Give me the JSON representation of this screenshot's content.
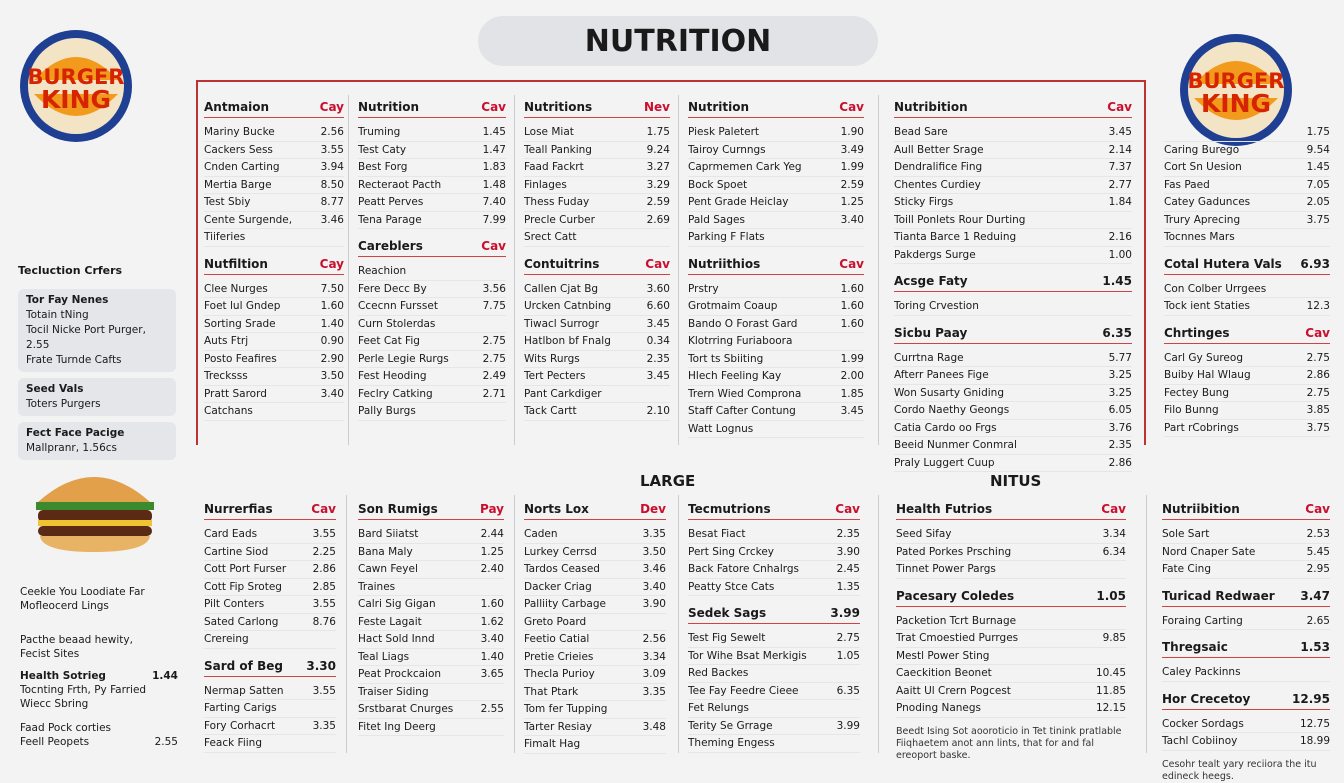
{
  "header": {
    "title": "NUTRITION",
    "logo": [
      "BURGER",
      "KING"
    ]
  },
  "top": [
    {
      "sections": [
        {
          "heading": "Antmaion",
          "unit": "Cay",
          "items": [
            [
              "Mariny Bucke",
              "2.56"
            ],
            [
              "Cackers Sess",
              "3.55"
            ],
            [
              "Cnden Carting",
              "3.94"
            ],
            [
              "Mertia Barge",
              "8.50"
            ],
            [
              "Test Sbiy",
              "8.77"
            ],
            [
              "Cente Surgende,",
              "3.46"
            ],
            [
              "Tiiferies"
            ]
          ]
        },
        {
          "heading": "Nutfiltion",
          "unit": "Cay",
          "items": [
            [
              "Clee Nurges",
              "7.50"
            ],
            [
              "Foet lul Gndep",
              "1.60"
            ],
            [
              "Sorting Srade",
              "1.40"
            ],
            [
              "Auts Ftrj",
              "0.90"
            ],
            [
              "Posto Feafires",
              "2.90"
            ],
            [
              "Trecksss",
              "3.50"
            ],
            [
              "Pratt Sarord",
              "3.40"
            ],
            [
              "Catchans"
            ]
          ]
        }
      ]
    },
    {
      "sections": [
        {
          "heading": "Nutrition",
          "unit": "Cav",
          "items": [
            [
              "Truming",
              "1.45"
            ],
            [
              "Test Caty",
              "1.47"
            ],
            [
              "Best Forg",
              "1.83"
            ],
            [
              "Recteraot Pacth",
              "1.48"
            ],
            [
              "Peatt Perves",
              "7.40"
            ],
            [
              "Tena Parage",
              "7.99"
            ]
          ]
        },
        {
          "heading": "Careblers",
          "unit": "Cav",
          "items": [
            [
              "Reachion"
            ],
            [
              "Fere Decc By",
              "3.56"
            ],
            [
              "Ccecnn Fursset",
              "7.75"
            ],
            [
              "Curn Stolerdas"
            ],
            [
              "Feet Cat Fig",
              "2.75"
            ],
            [
              "Perle Legie Rurgs",
              "2.75"
            ],
            [
              "Fest Heoding",
              "2.49"
            ],
            [
              "Feclry Catking",
              "2.71"
            ],
            [
              "Pally Burgs"
            ]
          ]
        }
      ]
    },
    {
      "sections": [
        {
          "heading": "Nutritions",
          "unit": "Nev",
          "items": [
            [
              "Lose Miat",
              "1.75"
            ],
            [
              "Teall Panking",
              "9.24"
            ],
            [
              "Faad Fackrt",
              "3.27"
            ],
            [
              "Finlages",
              "3.29"
            ],
            [
              "Thess Fuday",
              "2.59"
            ],
            [
              "Precle Curber",
              "2.69"
            ],
            [
              "Srect Catt"
            ]
          ]
        },
        {
          "heading": "Contuitrins",
          "unit": "Cav",
          "items": [
            [
              "Callen Cjat Bg",
              "3.60"
            ],
            [
              "Urcken Catnbing",
              "6.60"
            ],
            [
              "Tiwacl Surrogr",
              "3.45"
            ],
            [
              "Hatlbon bf Fnalg",
              "0.34"
            ],
            [
              "Wits Rurgs",
              "2.35"
            ],
            [
              "Tert Pecters",
              "3.45"
            ],
            [
              "Pant Carkdiger"
            ],
            [
              "Tack Cartt",
              "2.10"
            ]
          ]
        }
      ]
    },
    {
      "sections": [
        {
          "heading": "Nutrition",
          "unit": "Cav",
          "items": [
            [
              "Piesk Paletert",
              "1.90"
            ],
            [
              "Tairoy Curnngs",
              "3.49"
            ],
            [
              "Caprmemen Cark Yeg",
              "1.99"
            ],
            [
              "Bock Spoet",
              "2.59"
            ],
            [
              "Pent Grade Heiclay",
              "1.25"
            ],
            [
              "Pald Sages",
              "3.40"
            ],
            [
              "Parking F Flats"
            ]
          ]
        },
        {
          "heading": "Nutriithios",
          "unit": "Cav",
          "items": [
            [
              "Prstry",
              "1.60"
            ],
            [
              "Grotmaim Coaup",
              "1.60"
            ],
            [
              "Bando O Forast Gard",
              "1.60"
            ],
            [
              "Klotrring Furiaboora"
            ],
            [
              "Tort ts Sbiiting",
              "1.99"
            ],
            [
              "Hlech Feeling Kay",
              "2.00"
            ],
            [
              "Trern Wied Comprona",
              "1.85"
            ],
            [
              "Staff Cafter Contung",
              "3.45"
            ],
            [
              "Watt Lognus"
            ]
          ]
        }
      ]
    },
    {
      "sections": [
        {
          "heading": "Nutribition",
          "unit": "Cav",
          "items": [
            [
              "Bead Sare",
              "3.45"
            ],
            [
              "Aull Better Srage",
              "2.14"
            ],
            [
              "Dendralifice Fing",
              "7.37"
            ],
            [
              "Chentes Curdiey",
              "2.77"
            ],
            [
              "Sticky Firgs",
              "1.84"
            ],
            [
              "Toill Ponlets Rour Durting"
            ],
            [
              "Tianta Barce 1 Reduing",
              "2.16"
            ],
            [
              "Pakdergs Surge",
              "1.00"
            ]
          ]
        },
        {
          "heading": "Acsge Faty",
          "value": "1.45",
          "items": [
            [
              "Toring Crvestion"
            ]
          ]
        },
        {
          "heading": "Sicbu Paay",
          "value": "6.35",
          "items": [
            [
              "Currtna Rage",
              "5.77"
            ],
            [
              "Afterr Panees Fige",
              "3.25"
            ],
            [
              "Won Susarty Gniding",
              "3.25"
            ],
            [
              "Cordo Naethy Geongs",
              "6.05"
            ],
            [
              "Catia Cardo oo Frgs",
              "3.76"
            ],
            [
              "Beeid Nunmer Conmral",
              "2.35"
            ],
            [
              "Praly Luggert Cuup",
              "2.86"
            ]
          ]
        }
      ]
    }
  ],
  "right": {
    "sections": [
      {
        "items": [
          [
            "",
            "1.75"
          ],
          [
            "Caring Burego",
            "9.54"
          ],
          [
            "Cort Sn Uesion",
            "1.45"
          ],
          [
            "Fas Paed",
            "7.05"
          ],
          [
            "Catey Gadunces",
            "2.05"
          ],
          [
            "Trury Aprecing",
            "3.75"
          ],
          [
            "Tocnnes Mars"
          ]
        ]
      },
      {
        "heading": "Cotal Hutera Vals",
        "value": "6.93",
        "items": [
          [
            "Con Colber Urrgees"
          ],
          [
            "Tock ient Staties",
            "12.3"
          ]
        ]
      },
      {
        "heading": "Chrtinges",
        "unit": "Cav",
        "items": [
          [
            "Carl Gy Sureog",
            "2.75"
          ],
          [
            "Buiby Hal Wlaug",
            "2.86"
          ],
          [
            "Fectey Bung",
            "2.75"
          ],
          [
            "Filo Bunng",
            "3.85"
          ],
          [
            "Part rCobrings",
            "3.75"
          ]
        ]
      }
    ]
  },
  "left": {
    "heading": "Tecluction Crfers",
    "boxes": [
      [
        "Tor Fay Nenes",
        "Totain tNing",
        "Tocil Nicke Port Purger, 2.55",
        "Frate Turnde Cafts"
      ],
      [
        "Seed Vals",
        "Toters Purgers"
      ],
      [
        "Fect Face Pacige",
        "Mallpranr, 1.56cs"
      ]
    ],
    "notes": [
      [
        "Ceekle You Loodiate Far",
        "Mofleocerd Lings"
      ],
      [
        "Pacthe beaad hewity,",
        "Fecist Sites"
      ]
    ],
    "health": {
      "heading": "Health Sotrieg",
      "value": "1.44",
      "lines": [
        "Tocnting Frth, Py Farried",
        "Wiecc Sbring",
        "Faad Pock corties"
      ],
      "last": [
        "Feell Peopets",
        "2.55"
      ]
    }
  },
  "labels": {
    "large": "LARGE",
    "nitus": "NITUS"
  },
  "bottom": [
    {
      "sections": [
        {
          "heading": "Nurrerfias",
          "unit": "Cav",
          "items": [
            [
              "Card Eads",
              "3.55"
            ],
            [
              "Cartine Siod",
              "2.25"
            ],
            [
              "Cott Port Furser",
              "2.86"
            ],
            [
              "Cott Fip Sroteg",
              "2.85"
            ],
            [
              "Pilt Conters",
              "3.55"
            ],
            [
              "Sated Carlong",
              "8.76"
            ],
            [
              "Crereing"
            ]
          ]
        },
        {
          "heading": "Sard of Beg",
          "value": "3.30",
          "items": [
            [
              "Nermap Satten",
              "3.55"
            ],
            [
              "Farting Carigs"
            ],
            [
              "Fory Corhacrt",
              "3.35"
            ],
            [
              "Feack Fiing"
            ]
          ]
        }
      ]
    },
    {
      "sections": [
        {
          "heading": "Son Rumigs",
          "unit": "Pay",
          "items": [
            [
              "Bard Siiatst",
              "2.44"
            ],
            [
              "Bana Maly",
              "1.25"
            ],
            [
              "Cawn Feyel",
              "2.40"
            ],
            [
              "Traines"
            ],
            [
              "Calri Sig Gigan",
              "1.60"
            ],
            [
              "Feste Lagait",
              "1.62"
            ],
            [
              "Hact Sold Innd",
              "3.40"
            ],
            [
              "Teal Liags",
              "1.40"
            ],
            [
              "Peat Prockcaion",
              "3.65"
            ],
            [
              "Traiser Siding"
            ],
            [
              "Srstbarat Cnurges",
              "2.55"
            ],
            [
              "Fitet Ing Deerg"
            ]
          ]
        }
      ]
    },
    {
      "sections": [
        {
          "heading": "Norts Lox",
          "unit": "Dev",
          "items": [
            [
              "Caden",
              "3.35"
            ],
            [
              "Lurkey Cerrsd",
              "3.50"
            ],
            [
              "Tardos Ceased",
              "3.46"
            ],
            [
              "Dacker Criag",
              "3.40"
            ],
            [
              "Palliity Carbage",
              "3.90"
            ],
            [
              "Greto Poard"
            ],
            [
              "Feetio Catial",
              "2.56"
            ],
            [
              "Pretie Crieies",
              "3.34"
            ],
            [
              "Thecla Purioy",
              "3.09"
            ],
            [
              "That Ptark",
              "3.35"
            ],
            [
              "Tom fer Tupping"
            ],
            [
              "Tarter Resiay",
              "3.48"
            ],
            [
              "Fimalt Hag"
            ]
          ]
        }
      ]
    },
    {
      "sections": [
        {
          "heading": "Tecmutrions",
          "unit": "Cav",
          "items": [
            [
              "Besat Fiact",
              "2.35"
            ],
            [
              "Pert Sing Crckey",
              "3.90"
            ],
            [
              "Back Fatore Cnhalrgs",
              "2.45"
            ],
            [
              "Peatty Stce Cats",
              "1.35"
            ]
          ]
        },
        {
          "heading": "Sedek Sags",
          "value": "3.99",
          "items": [
            [
              "Test Fig Sewelt",
              "2.75"
            ],
            [
              "Tor Wihe Bsat Merkigis",
              "1.05"
            ],
            [
              "Red Backes"
            ],
            [
              "Tee Fay Feedre Cieee",
              "6.35"
            ],
            [
              "Fet Relungs"
            ],
            [
              "Terity Se Grrage",
              "3.99"
            ],
            [
              "Theming Engess"
            ]
          ]
        }
      ]
    },
    {
      "sections": [
        {
          "heading": "Health Futrios",
          "unit": "Cav",
          "items": [
            [
              "Seed Sifay",
              "3.34"
            ],
            [
              "Pated Porkes Prsching",
              "6.34"
            ],
            [
              "Tinnet Power Pargs"
            ]
          ]
        },
        {
          "heading": "Pacesary Coledes",
          "value": "1.05",
          "items": [
            [
              "Packetion Tcrt Burnage"
            ],
            [
              "Trat Cmoestied Purrges",
              "9.85"
            ],
            [
              "Mestl Power Sting"
            ],
            [
              "Caeckition Beonet",
              "10.45"
            ],
            [
              "Aaitt Ul Crern Pogcest",
              "11.85"
            ],
            [
              "Pnoding Nanegs",
              "12.15"
            ]
          ],
          "note": "Beedt Ising Sot aooroticio in Tet tinink pratlable Fiiqhaetem anot ann lints, that for and fal ereoport baske."
        }
      ]
    },
    {
      "sections": [
        {
          "heading": "Nutriibition",
          "unit": "Cav",
          "items": [
            [
              "Sole Sart",
              "2.53"
            ],
            [
              "Nord Cnaper Sate",
              "5.45"
            ],
            [
              "Fate Cing",
              "2.95"
            ]
          ]
        },
        {
          "heading": "Turicad Redwaer",
          "value": "3.47",
          "items": [
            [
              "Foraing Carting",
              "2.65"
            ]
          ]
        },
        {
          "heading": "Thregsaic",
          "value": "1.53",
          "items": [
            [
              "Caley Packinns"
            ]
          ]
        },
        {
          "heading": "Hor Crecetoy",
          "value": "12.95",
          "items": [
            [
              "Cocker Sordags",
              "12.75"
            ],
            [
              "Tachl Cobiinoy",
              "18.99"
            ]
          ],
          "note": "Cesohr tealt yary reciiora the itu edineck heegs."
        }
      ]
    }
  ]
}
